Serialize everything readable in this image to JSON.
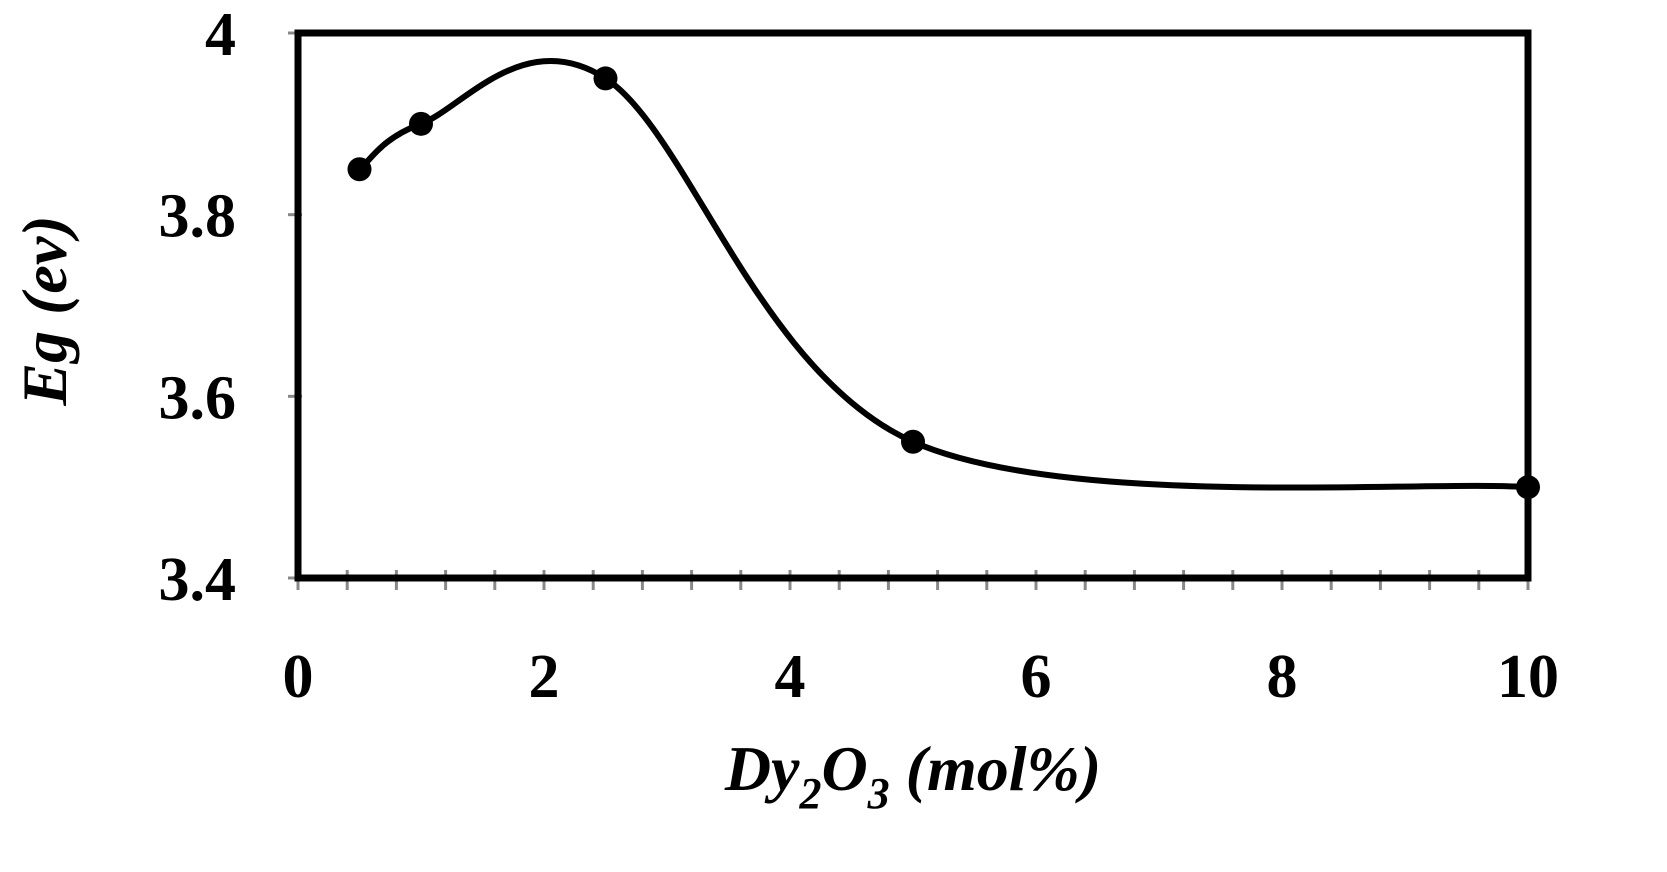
{
  "chart_data": {
    "type": "line",
    "xlabel": {
      "main": "Dy",
      "sub1": "2",
      "mid": "O",
      "sub2": "3",
      "tail": " (mol%)"
    },
    "ylabel": {
      "main": "Eg",
      "tail": " (ev)"
    },
    "xlim": [
      0,
      10
    ],
    "ylim": [
      3.4,
      4.0
    ],
    "x_ticks": [
      0,
      2,
      4,
      6,
      8,
      10
    ],
    "y_ticks": [
      3.4,
      3.6,
      3.8,
      4.0
    ],
    "y_tick_labels": [
      "3.4",
      "3.6",
      "3.8",
      "4"
    ],
    "x_minor_step": 0.4,
    "grid": false,
    "smooth": true,
    "series": [
      {
        "x": [
          0.5,
          1,
          2.5,
          5,
          10
        ],
        "y": [
          3.85,
          3.9,
          3.95,
          3.55,
          3.5
        ],
        "color": "#000000"
      }
    ]
  }
}
